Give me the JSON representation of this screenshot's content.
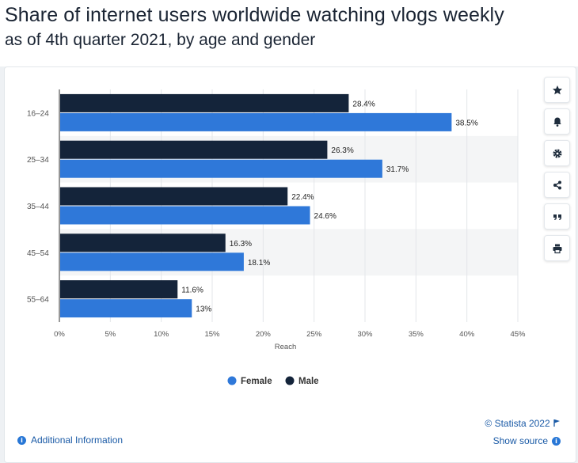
{
  "title": "Share of internet users worldwide watching vlogs weekly",
  "subtitle": "as of 4th quarter 2021, by age  and gender",
  "chart_data": {
    "type": "bar",
    "orientation": "horizontal",
    "categories": [
      "16–24",
      "25–34",
      "35–44",
      "45–54",
      "55–64"
    ],
    "series": [
      {
        "name": "Male",
        "color": "#14243a",
        "values": [
          28.4,
          26.3,
          22.4,
          16.3,
          11.6
        ],
        "labels": [
          "28.4%",
          "26.3%",
          "22.4%",
          "16.3%",
          "11.6%"
        ]
      },
      {
        "name": "Female",
        "color": "#2f78d9",
        "values": [
          38.5,
          31.7,
          24.6,
          18.1,
          13
        ],
        "labels": [
          "38.5%",
          "31.7%",
          "24.6%",
          "18.1%",
          "13%"
        ]
      }
    ],
    "xlabel": "Reach",
    "ylabel": "",
    "xlim": [
      0,
      45
    ],
    "xticks": [
      "0%",
      "5%",
      "10%",
      "15%",
      "20%",
      "25%",
      "30%",
      "35%",
      "40%",
      "45%"
    ],
    "grid": true,
    "legend_position": "bottom",
    "legend_order": [
      "Female",
      "Male"
    ]
  },
  "toolbar": {
    "icons": [
      "star-icon",
      "bell-icon",
      "gear-icon",
      "share-icon",
      "quote-icon",
      "print-icon"
    ]
  },
  "footer": {
    "copyright": "© Statista 2022",
    "show_source": "Show source",
    "additional_info": "Additional Information"
  },
  "colors": {
    "link": "#1a5aa6",
    "accent": "#2877d6",
    "band": "#f4f5f6"
  }
}
